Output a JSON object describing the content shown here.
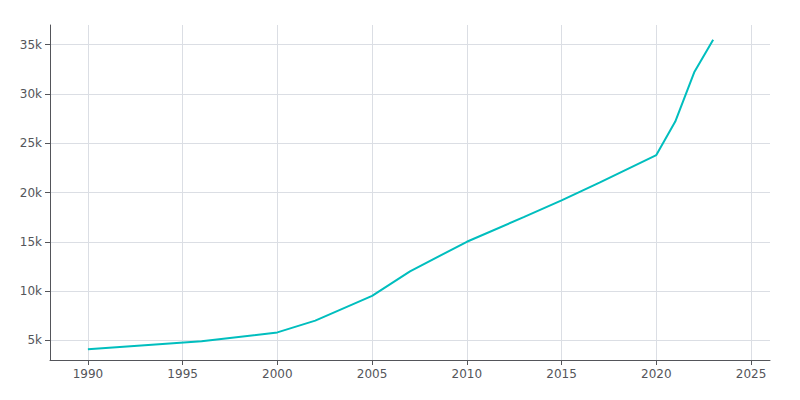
{
  "chart_data": {
    "type": "line",
    "x": [
      1990,
      1993,
      1996,
      2000,
      2002,
      2005,
      2007,
      2010,
      2013,
      2015,
      2017,
      2020,
      2021,
      2022,
      2023
    ],
    "values": [
      4100,
      4500,
      4900,
      5800,
      7000,
      9500,
      12000,
      15000,
      17500,
      19200,
      21000,
      23800,
      27200,
      32200,
      35500
    ],
    "color": "#00BEBE",
    "xlim": [
      1988,
      2026
    ],
    "xticks": [
      1990,
      1995,
      2000,
      2005,
      2010,
      2015,
      2020,
      2025
    ],
    "ylim": [
      3000,
      37000
    ],
    "yticks": [
      {
        "value": 5000,
        "label": "5k"
      },
      {
        "value": 10000,
        "label": "10k"
      },
      {
        "value": 15000,
        "label": "15k"
      },
      {
        "value": 20000,
        "label": "20k"
      },
      {
        "value": 25000,
        "label": "25k"
      },
      {
        "value": 30000,
        "label": "30k"
      },
      {
        "value": 35000,
        "label": "35k"
      }
    ],
    "grid": true
  }
}
